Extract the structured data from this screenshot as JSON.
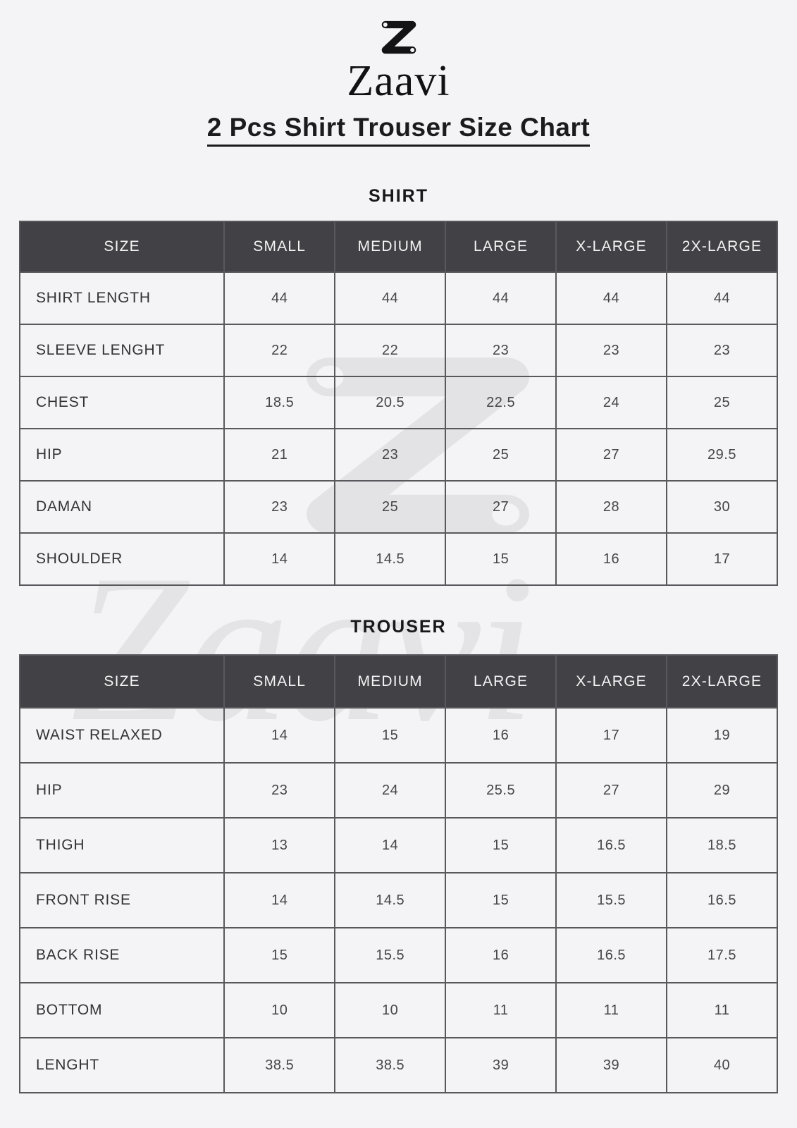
{
  "brand": {
    "name": "Zaavi",
    "logo_icon": "zaavi-z-ribbon-icon"
  },
  "title": "2 Pcs Shirt Trouser Size Chart",
  "columns": [
    "SIZE",
    "SMALL",
    "MEDIUM",
    "LARGE",
    "X-LARGE",
    "2X-LARGE"
  ],
  "tables": [
    {
      "title": "SHIRT",
      "rows": [
        {
          "label": "SHIRT LENGTH",
          "values": [
            "44",
            "44",
            "44",
            "44",
            "44"
          ]
        },
        {
          "label": "SLEEVE LENGHT",
          "values": [
            "22",
            "22",
            "23",
            "23",
            "23"
          ]
        },
        {
          "label": "CHEST",
          "values": [
            "18.5",
            "20.5",
            "22.5",
            "24",
            "25"
          ]
        },
        {
          "label": "HIP",
          "values": [
            "21",
            "23",
            "25",
            "27",
            "29.5"
          ]
        },
        {
          "label": "DAMAN",
          "values": [
            "23",
            "25",
            "27",
            "28",
            "30"
          ]
        },
        {
          "label": "SHOULDER",
          "values": [
            "14",
            "14.5",
            "15",
            "16",
            "17"
          ]
        }
      ]
    },
    {
      "title": "TROUSER",
      "rows": [
        {
          "label": "WAIST RELAXED",
          "values": [
            "14",
            "15",
            "16",
            "17",
            "19"
          ]
        },
        {
          "label": "HIP",
          "values": [
            "23",
            "24",
            "25.5",
            "27",
            "29"
          ]
        },
        {
          "label": "THIGH",
          "values": [
            "13",
            "14",
            "15",
            "16.5",
            "18.5"
          ]
        },
        {
          "label": "FRONT RISE",
          "values": [
            "14",
            "14.5",
            "15",
            "15.5",
            "16.5"
          ]
        },
        {
          "label": "BACK RISE",
          "values": [
            "15",
            "15.5",
            "16",
            "16.5",
            "17.5"
          ]
        },
        {
          "label": "BOTTOM",
          "values": [
            "10",
            "10",
            "11",
            "11",
            "11"
          ]
        },
        {
          "label": "LENGHT",
          "values": [
            "38.5",
            "38.5",
            "39",
            "39",
            "40"
          ]
        }
      ]
    }
  ],
  "watermark": {
    "text": "Zaavi",
    "icon": "zaavi-z-ribbon-icon"
  },
  "colors": {
    "page_background": "#f4f4f6",
    "table_header_background": "#424246",
    "table_header_text": "#f4f4f5",
    "table_border": "#59595d",
    "body_text": "#323235",
    "title_text": "#1b1b1e",
    "watermark": "#e4e4e7"
  }
}
